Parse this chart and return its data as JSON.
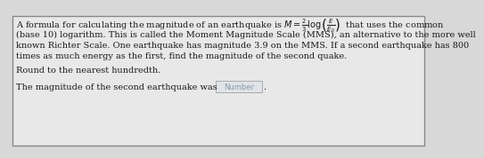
{
  "bg_color": "#d8d8d8",
  "box_color": "#e8e8e8",
  "inner_bg": "#e8e8e8",
  "border_color": "#888888",
  "text_color": "#1a1a1a",
  "line1a": "A formula for calculating the magnitude of an earthquake is ",
  "line1_math": "$M = \\frac{2}{3}\\log\\left(\\frac{E}{E_0}\\right)$",
  "line1b": "  that uses the common",
  "line2": "(base 10) logarithm. This is called the Moment Magnitude Scale (MMS), an alternative to the more well",
  "line3": "known Richter Scale. One earthquake has magnitude 3.9 on the MMS. If a second earthquake has 800",
  "line4": "times as much energy as the first, find the magnitude of the second quake.",
  "line5": "Round to the nearest hundredth.",
  "line6": "The magnitude of the second earthquake was",
  "input_label": "Number",
  "font_size": 7.0,
  "input_font_size": 6.0
}
